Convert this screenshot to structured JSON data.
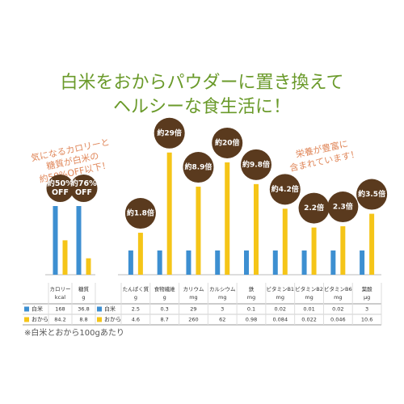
{
  "title": [
    "白米をおからパウダーに置き換えて",
    "ヘルシーな食生活に！"
  ],
  "callouts": [
    [
      "気になるカロリーと",
      "糖質が白米の",
      "約50%OFF以下！"
    ],
    [
      "栄養が豊富に",
      "含まれています！"
    ]
  ],
  "note": "※白米とおから100gあたり",
  "chart_data": [
    {
      "type": "bar",
      "categories": [
        "カロリー",
        "糖質"
      ],
      "units": [
        "kcal",
        "g"
      ],
      "series": [
        {
          "name": "白米",
          "color": "#3d8fd1",
          "values": [
            168,
            36.8
          ]
        },
        {
          "name": "おから",
          "color": "#f5c518",
          "values": [
            84.2,
            8.8
          ]
        }
      ],
      "badges": [
        [
          "約50%",
          "OFF"
        ],
        [
          "約76%",
          "OFF"
        ]
      ]
    },
    {
      "type": "bar",
      "log": true,
      "categories": [
        "たんぱく質",
        "食物繊維",
        "カリウム",
        "カルシウム",
        "鉄",
        "ビタミンB1",
        "ビタミンB2",
        "ビタミンB6",
        "葉酸"
      ],
      "units": [
        "g",
        "g",
        "mg",
        "mg",
        "mg",
        "mg",
        "mg",
        "mg",
        "μg"
      ],
      "series": [
        {
          "name": "白米",
          "color": "#3d8fd1",
          "values": [
            2.5,
            0.3,
            29,
            3,
            0.1,
            0.02,
            0.01,
            0.02,
            3
          ]
        },
        {
          "name": "おから",
          "color": "#f5c518",
          "values": [
            4.6,
            8.7,
            260,
            62,
            0.98,
            0.084,
            0.022,
            0.046,
            10.6
          ]
        }
      ],
      "badges": [
        [
          "約1.8倍"
        ],
        [
          "約29倍"
        ],
        [
          "約8.9倍"
        ],
        [
          "約20倍"
        ],
        [
          "約9.8倍"
        ],
        [
          "約4.2倍"
        ],
        [
          "2.2倍"
        ],
        [
          "2.3倍"
        ],
        [
          "約3.5倍"
        ]
      ]
    }
  ]
}
